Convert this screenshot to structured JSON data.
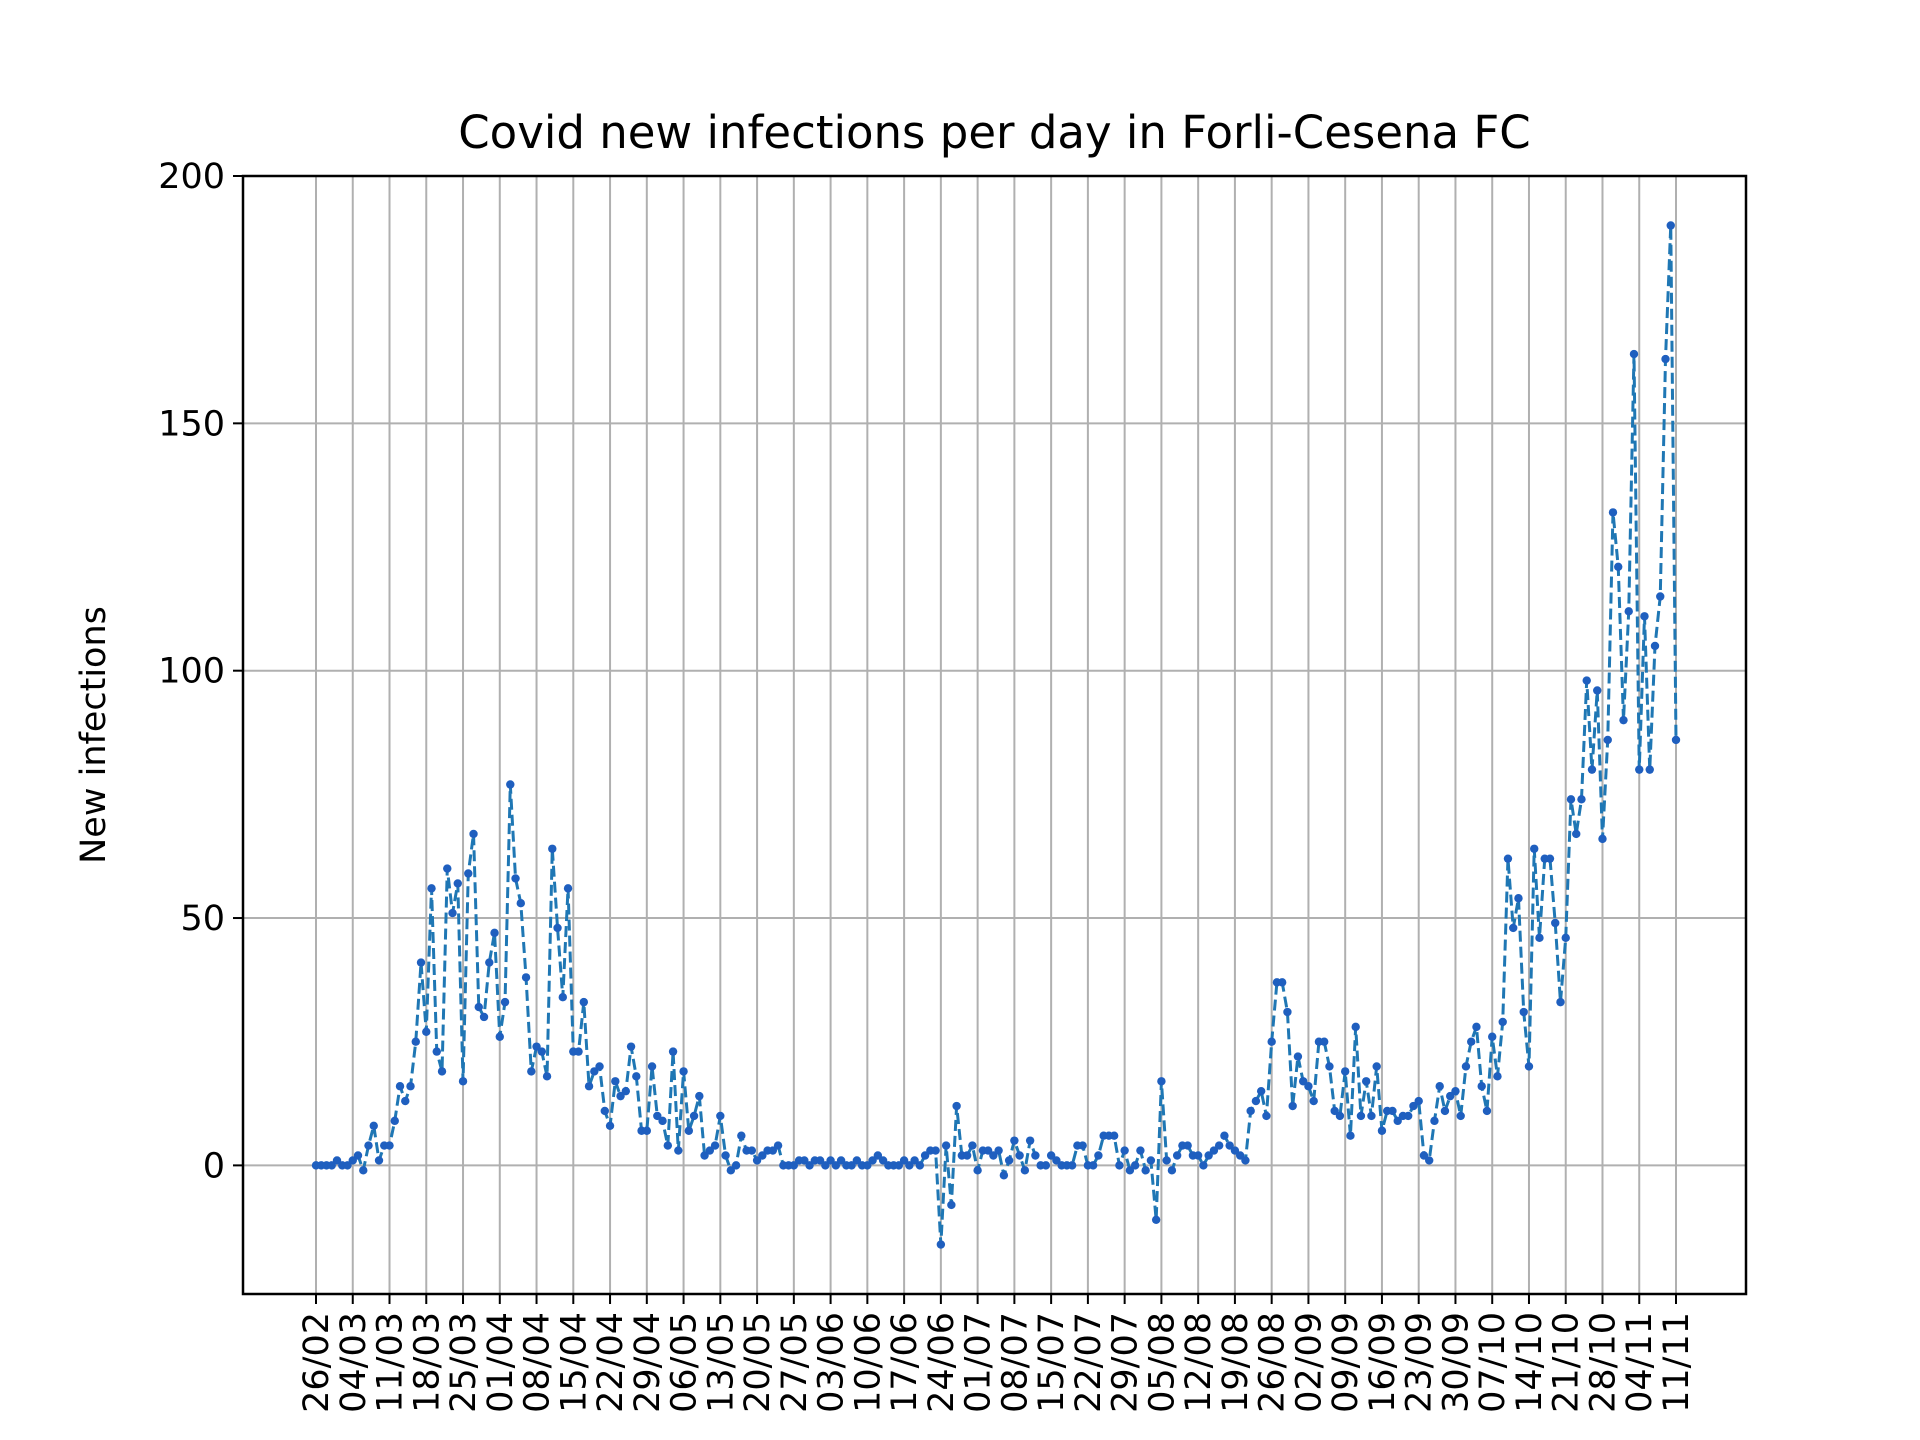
{
  "chart_data": {
    "type": "line",
    "title": "Covid new infections per day in Forli-Cesena FC",
    "xlabel": "",
    "ylabel": "New infections",
    "ylim": [
      -26,
      200
    ],
    "yticks": [
      0,
      50,
      100,
      150,
      200
    ],
    "grid": true,
    "line_style": "dashed",
    "marker": "dot",
    "colors": {
      "line": "#1f77b4",
      "marker": "#1f5fbf",
      "grid": "#b0b0b0"
    },
    "xtick_labels": [
      "26/02",
      "04/03",
      "11/03",
      "18/03",
      "25/03",
      "01/04",
      "08/04",
      "15/04",
      "22/04",
      "29/04",
      "06/05",
      "13/05",
      "20/05",
      "27/05",
      "03/06",
      "10/06",
      "17/06",
      "24/06",
      "01/07",
      "08/07",
      "15/07",
      "22/07",
      "29/07",
      "05/08",
      "12/08",
      "19/08",
      "26/08",
      "02/09",
      "09/09",
      "16/09",
      "23/09",
      "30/09",
      "07/10",
      "14/10",
      "21/10",
      "28/10",
      "04/11",
      "11/11"
    ],
    "x_start": "26/02",
    "series": [
      {
        "values": [
          0,
          0,
          0,
          0,
          1,
          0,
          0,
          1,
          2,
          -1,
          4,
          8,
          1,
          4,
          4,
          9,
          16,
          13,
          16,
          25,
          41,
          27,
          56,
          23,
          19,
          60,
          51,
          57,
          17,
          59,
          67,
          32,
          30,
          41,
          47,
          26,
          33,
          77,
          58,
          53,
          38,
          19,
          24,
          23,
          18,
          64,
          48,
          34,
          56,
          23,
          23,
          33,
          16,
          19,
          20,
          11,
          8,
          17,
          14,
          15,
          24,
          18,
          7,
          7,
          20,
          10,
          9,
          4,
          23,
          3,
          19,
          7,
          10,
          14,
          2,
          3,
          4,
          10,
          2,
          -1,
          0,
          6,
          3,
          3,
          1,
          2,
          3,
          3,
          4,
          0,
          0,
          0,
          1,
          1,
          0,
          1,
          1,
          0,
          1,
          0,
          1,
          0,
          0,
          1,
          0,
          0,
          1,
          2,
          1,
          0,
          0,
          0,
          1,
          0,
          1,
          0,
          2,
          3,
          3,
          -16,
          4,
          -8,
          12,
          2,
          2,
          4,
          -1,
          3,
          3,
          2,
          3,
          -2,
          1,
          5,
          2,
          -1,
          5,
          2,
          0,
          0,
          2,
          1,
          0,
          0,
          0,
          4,
          4,
          0,
          0,
          2,
          6,
          6,
          6,
          0,
          3,
          -1,
          0,
          3,
          -1,
          1,
          -11,
          17,
          1,
          -1,
          2,
          4,
          4,
          2,
          2,
          0,
          2,
          3,
          4,
          6,
          4,
          3,
          2,
          1,
          11,
          13,
          15,
          10,
          25,
          37,
          37,
          31,
          12,
          22,
          17,
          16,
          13,
          25,
          25,
          20,
          11,
          10,
          19,
          6,
          28,
          10,
          17,
          10,
          20,
          7,
          11,
          11,
          9,
          10,
          10,
          12,
          13,
          2,
          1,
          9,
          16,
          11,
          14,
          15,
          10,
          20,
          25,
          28,
          16,
          11,
          26,
          18,
          29,
          62,
          48,
          54,
          31,
          20,
          64,
          46,
          62,
          62,
          49,
          33,
          46,
          74,
          67,
          74,
          98,
          80,
          96,
          66,
          86,
          132,
          121,
          90,
          112,
          164,
          80,
          111,
          80,
          105,
          115,
          163,
          190,
          86
        ]
      }
    ]
  }
}
